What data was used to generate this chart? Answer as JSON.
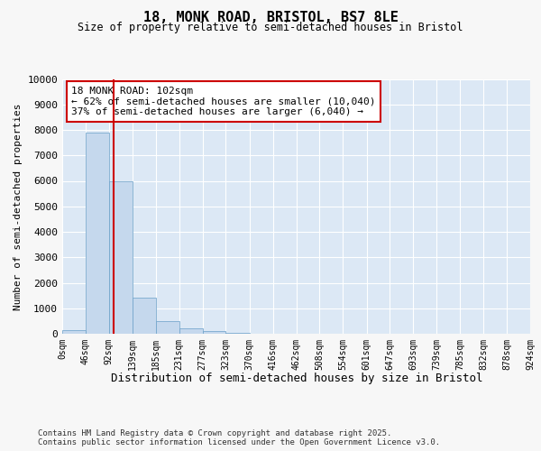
{
  "title1": "18, MONK ROAD, BRISTOL, BS7 8LE",
  "title2": "Size of property relative to semi-detached houses in Bristol",
  "xlabel": "Distribution of semi-detached houses by size in Bristol",
  "ylabel": "Number of semi-detached properties",
  "annotation_title": "18 MONK ROAD: 102sqm",
  "annotation_line1": "← 62% of semi-detached houses are smaller (10,040)",
  "annotation_line2": "37% of semi-detached houses are larger (6,040) →",
  "footer1": "Contains HM Land Registry data © Crown copyright and database right 2025.",
  "footer2": "Contains public sector information licensed under the Open Government Licence v3.0.",
  "property_size": 102,
  "bar_edges": [
    0,
    46,
    92,
    139,
    185,
    231,
    277,
    323,
    370,
    416,
    462,
    508,
    554,
    601,
    647,
    693,
    739,
    785,
    832,
    878,
    924
  ],
  "bar_heights": [
    150,
    7900,
    6000,
    1400,
    500,
    230,
    100,
    50,
    10,
    5,
    3,
    2,
    1,
    1,
    1,
    0,
    0,
    0,
    0,
    0
  ],
  "bar_color": "#c5d8ed",
  "bar_edge_color": "#6a9fc8",
  "vline_color": "#cc0000",
  "annotation_box_color": "#cc0000",
  "bg_color": "#dce8f5",
  "grid_color": "#ffffff",
  "fig_bg_color": "#f7f7f7",
  "ylim": [
    0,
    10000
  ],
  "yticks": [
    0,
    1000,
    2000,
    3000,
    4000,
    5000,
    6000,
    7000,
    8000,
    9000,
    10000
  ]
}
